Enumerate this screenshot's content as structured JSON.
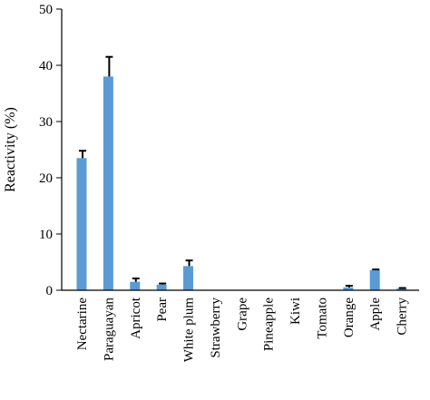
{
  "chart_data": {
    "type": "bar",
    "title": "",
    "xlabel": "",
    "ylabel": "Reactivity (%)",
    "ylim": [
      0,
      50
    ],
    "yticks": [
      0,
      10,
      20,
      30,
      40,
      50
    ],
    "grid": false,
    "legend": "none",
    "categories": [
      "Nectarine",
      "Paraguayan",
      "Apricot",
      "Pear",
      "White plum",
      "Strawberry",
      "Grape",
      "Pineapple",
      "Kiwi",
      "Tomato",
      "Orange",
      "Apple",
      "Cherry"
    ],
    "series": [
      {
        "values": [
          23.5,
          38,
          1.5,
          1.0,
          4.3,
          0,
          0,
          0,
          0,
          0,
          0.5,
          3.6,
          0.3
        ],
        "errors": [
          1.3,
          3.5,
          0.6,
          0.2,
          1.0,
          0,
          0,
          0,
          0,
          0,
          0.3,
          0.1,
          0.1
        ],
        "color": "#5b9bd5"
      }
    ]
  }
}
